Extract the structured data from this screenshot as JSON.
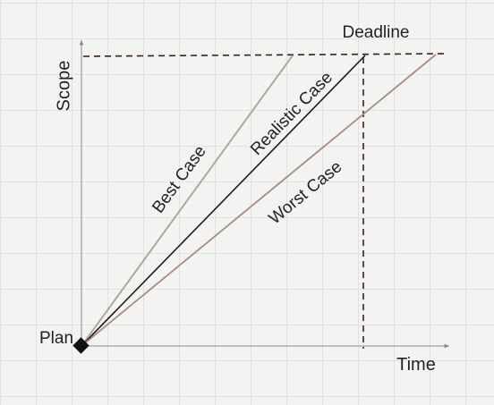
{
  "diagram": {
    "axis_y_label": "Scope",
    "axis_x_label": "Time",
    "origin_label": "Plan",
    "deadline_label": "Deadline",
    "lines": [
      {
        "name": "Best Case",
        "color": "#a6ab9c"
      },
      {
        "name": "Realistic Case",
        "color": "#1b1b1b"
      },
      {
        "name": "Worst Case",
        "color": "#a98a86"
      }
    ]
  },
  "colors": {
    "axis": "#888888",
    "deadline_dash": "#3a1f1f",
    "text": "#222222",
    "background": "#f3f3f1"
  }
}
